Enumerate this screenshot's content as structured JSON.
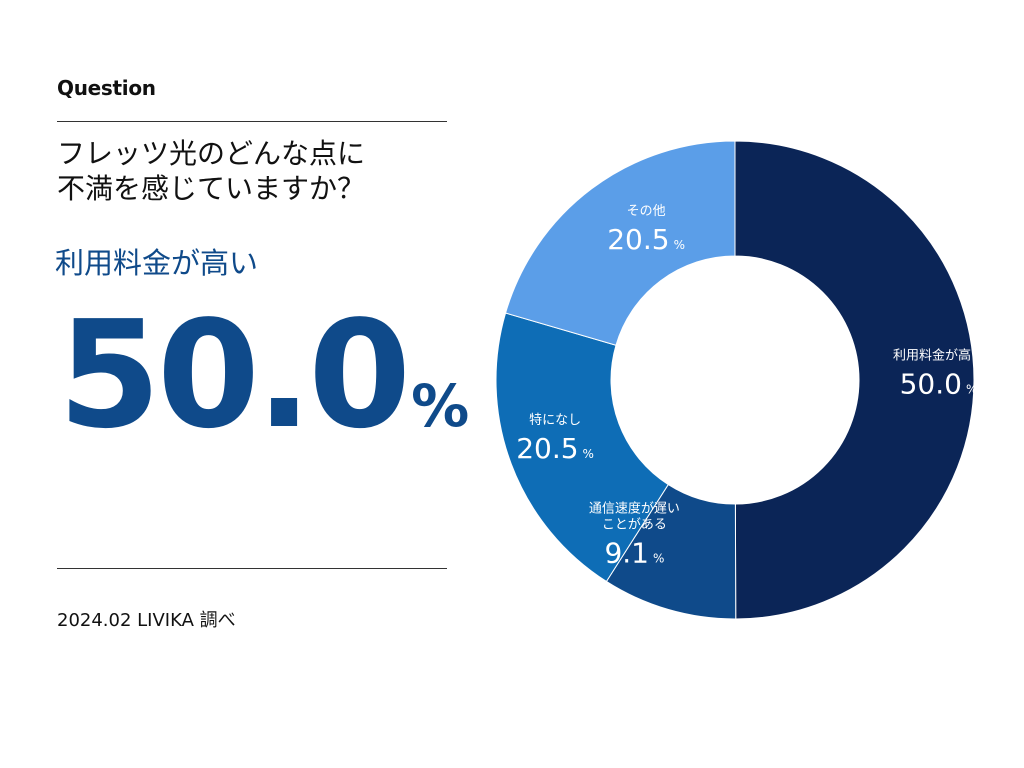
{
  "header": {
    "label": "Question"
  },
  "question": {
    "text": "フレッツ光のどんな点に\n不満を感じていますか？"
  },
  "highlight": {
    "label": "利用料金が高い",
    "value": "50.0",
    "unit": "%"
  },
  "footer": {
    "source": "2024.02 LIVIKA 調べ"
  },
  "chart_data": {
    "type": "pie",
    "variant": "donut",
    "unit": "%",
    "slices": [
      {
        "label": "利用料金が高い",
        "label_lines": [
          "利用料金が高い"
        ],
        "value": 50.0,
        "value_text": "50.0",
        "color": "#0b2557"
      },
      {
        "label": "通信速度が遅いことがある",
        "label_lines": [
          "通信速度が遅い",
          "ことがある"
        ],
        "value": 9.1,
        "value_text": "9.1",
        "color": "#0f4a8a"
      },
      {
        "label": "特になし",
        "label_lines": [
          "特になし"
        ],
        "value": 20.5,
        "value_text": "20.5",
        "color": "#0e6db6"
      },
      {
        "label": "その他",
        "label_lines": [
          "その他"
        ],
        "value": 20.5,
        "value_text": "20.5",
        "color": "#5b9ee8"
      }
    ]
  }
}
